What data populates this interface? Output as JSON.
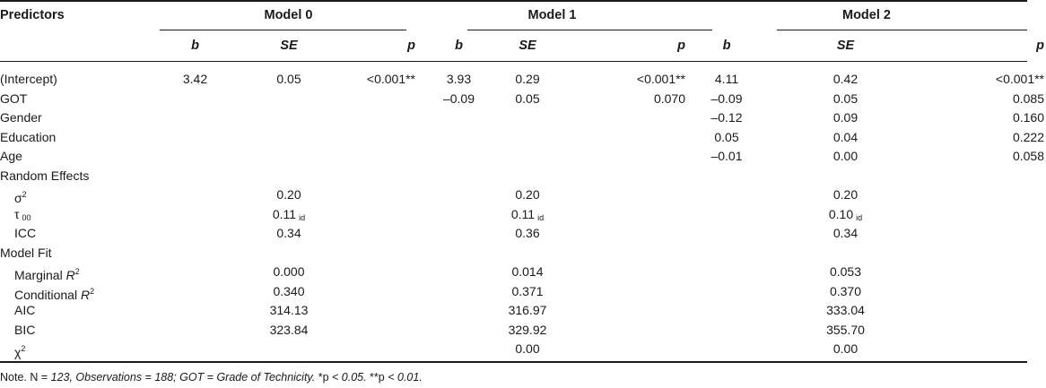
{
  "header": {
    "predictors": "Predictors",
    "models": [
      "Model 0",
      "Model 1",
      "Model 2"
    ],
    "sub": [
      "b",
      "SE",
      "p"
    ]
  },
  "rows": [
    {
      "label": "(Intercept)",
      "indent": false,
      "m0": [
        "3.42",
        "0.05",
        "<0.001**"
      ],
      "m1": [
        "3.93",
        "0.29",
        "<0.001**"
      ],
      "m2": [
        "4.11",
        "0.42",
        "<0.001**"
      ]
    },
    {
      "label": "GOT",
      "indent": false,
      "m0": [
        "",
        "",
        ""
      ],
      "m1": [
        "–0.09",
        "0.05",
        "0.070"
      ],
      "m2": [
        "–0.09",
        "0.05",
        "0.085"
      ]
    },
    {
      "label": "Gender",
      "indent": false,
      "m0": [
        "",
        "",
        ""
      ],
      "m1": [
        "",
        "",
        ""
      ],
      "m2": [
        "–0.12",
        "0.09",
        "0.160"
      ]
    },
    {
      "label": "Education",
      "indent": false,
      "m0": [
        "",
        "",
        ""
      ],
      "m1": [
        "",
        "",
        ""
      ],
      "m2": [
        "0.05",
        "0.04",
        "0.222"
      ]
    },
    {
      "label": "Age",
      "indent": false,
      "m0": [
        "",
        "",
        ""
      ],
      "m1": [
        "",
        "",
        ""
      ],
      "m2": [
        "–0.01",
        "0.00",
        "0.058"
      ]
    },
    {
      "label": "Random Effects",
      "indent": false,
      "m0": [
        "",
        "",
        ""
      ],
      "m1": [
        "",
        "",
        ""
      ],
      "m2": [
        "",
        "",
        ""
      ]
    },
    {
      "label": "σ",
      "labelSup": "2",
      "indent": true,
      "m0": [
        "",
        "0.20",
        ""
      ],
      "m1": [
        "",
        "0.20",
        ""
      ],
      "m2": [
        "",
        "0.20",
        ""
      ]
    },
    {
      "label": "τ",
      "labelSub": "00",
      "indent": true,
      "m0": [
        "",
        "0.11",
        ""
      ],
      "m1": [
        "",
        "0.11",
        ""
      ],
      "m2": [
        "",
        "0.10",
        ""
      ],
      "seSub": "id"
    },
    {
      "label": "ICC",
      "indent": true,
      "m0": [
        "",
        "0.34",
        ""
      ],
      "m1": [
        "",
        "0.36",
        ""
      ],
      "m2": [
        "",
        "0.34",
        ""
      ]
    },
    {
      "label": "Model Fit",
      "indent": false,
      "m0": [
        "",
        "",
        ""
      ],
      "m1": [
        "",
        "",
        ""
      ],
      "m2": [
        "",
        "",
        ""
      ]
    },
    {
      "label": "Marginal ",
      "labelItal": "R",
      "labelSup": "2",
      "indent": true,
      "m0": [
        "",
        "0.000",
        ""
      ],
      "m1": [
        "",
        "0.014",
        ""
      ],
      "m2": [
        "",
        "0.053",
        ""
      ]
    },
    {
      "label": "Conditional ",
      "labelItal": "R",
      "labelSup": "2",
      "indent": true,
      "m0": [
        "",
        "0.340",
        ""
      ],
      "m1": [
        "",
        "0.371",
        ""
      ],
      "m2": [
        "",
        "0.370",
        ""
      ]
    },
    {
      "label": "AIC",
      "indent": true,
      "m0": [
        "",
        "314.13",
        ""
      ],
      "m1": [
        "",
        "316.97",
        ""
      ],
      "m2": [
        "",
        "333.04",
        ""
      ]
    },
    {
      "label": "BIC",
      "indent": true,
      "m0": [
        "",
        "323.84",
        ""
      ],
      "m1": [
        "",
        "329.92",
        ""
      ],
      "m2": [
        "",
        "355.70",
        ""
      ]
    },
    {
      "label": "χ",
      "labelSup": "2",
      "indent": true,
      "m0": [
        "",
        "",
        ""
      ],
      "m1": [
        "",
        "0.00",
        ""
      ],
      "m2": [
        "",
        "0.00",
        ""
      ]
    }
  ],
  "note": {
    "prefix": "Note. N = ",
    "italic1": "123, Observations = 188; GOT = Grade of Technicity.",
    "middle1": " *p ",
    "italic2": "< 0.05.",
    "middle2": " **p ",
    "italic3": "< 0.01."
  }
}
